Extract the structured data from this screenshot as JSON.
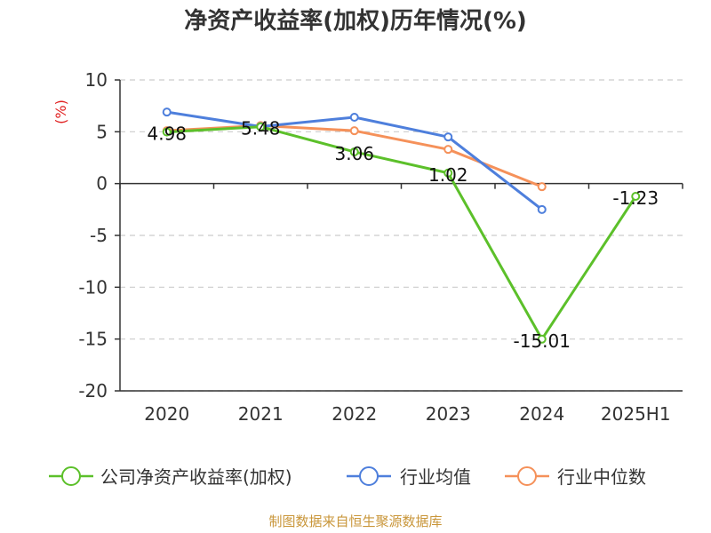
{
  "source_text": "制图数据来自恒生聚源数据库",
  "chart_data": {
    "type": "line",
    "title": "净资产收益率(加权)历年情况(%)",
    "ylabel": "(%)",
    "xlabel": "",
    "categories": [
      "2020",
      "2021",
      "2022",
      "2023",
      "2024",
      "2025H1"
    ],
    "ylim": [
      -20,
      10
    ],
    "yticks": [
      10,
      5,
      0,
      -5,
      -10,
      -15,
      -20
    ],
    "grid": true,
    "legend_position": "bottom",
    "series": [
      {
        "name": "公司净资产收益率(加权)",
        "color": "#5cc02a",
        "values": [
          4.98,
          5.48,
          3.06,
          1.02,
          -15.01,
          -1.23
        ],
        "labels": [
          "4.98",
          "5.48",
          "3.06",
          "1.02",
          "-15.01",
          "-1.23"
        ]
      },
      {
        "name": "行业均值",
        "color": "#4e7fdc",
        "values": [
          6.9,
          5.5,
          6.4,
          4.5,
          -2.5,
          null
        ]
      },
      {
        "name": "行业中位数",
        "color": "#f5915a",
        "values": [
          5.1,
          5.6,
          5.1,
          3.3,
          -0.3,
          null
        ]
      }
    ]
  }
}
